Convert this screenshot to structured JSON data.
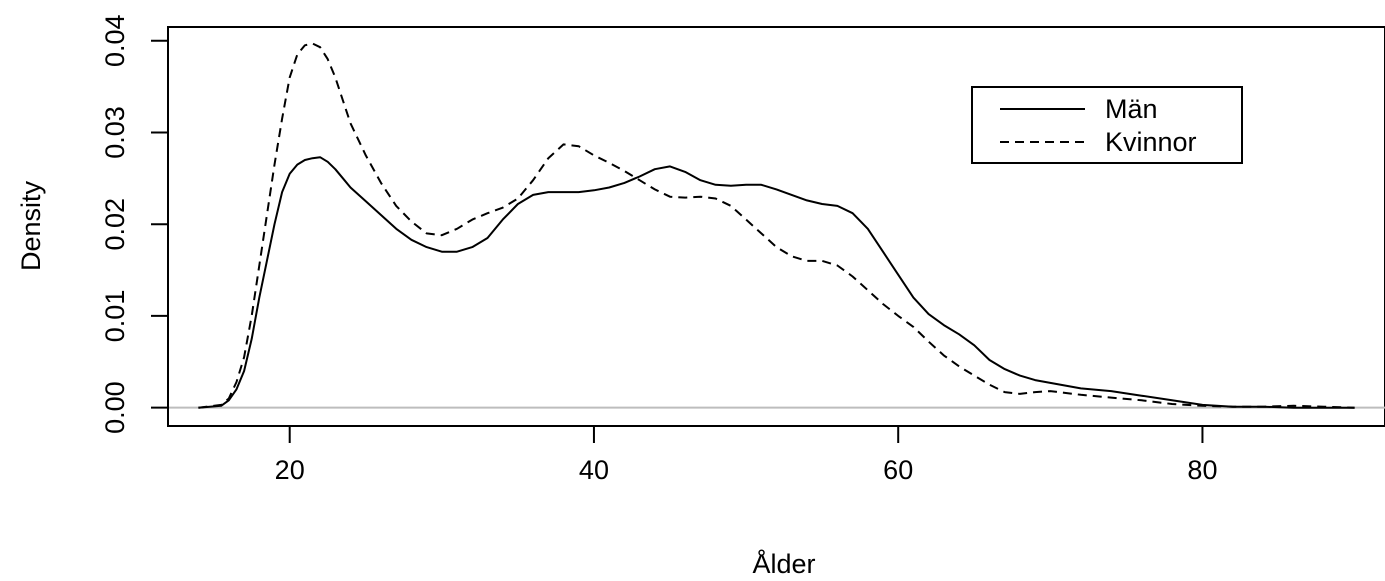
{
  "chart_data": {
    "type": "line",
    "title": "",
    "xlabel": "Ålder",
    "ylabel": "Density",
    "xlim": [
      12,
      92
    ],
    "ylim": [
      -0.002,
      0.0415
    ],
    "xticks": [
      20,
      40,
      60,
      80
    ],
    "xtick_labels": [
      "20",
      "40",
      "60",
      "80"
    ],
    "yticks": [
      0.0,
      0.01,
      0.02,
      0.03,
      0.04
    ],
    "ytick_labels": [
      "0.00",
      "0.01",
      "0.02",
      "0.03",
      "0.04"
    ],
    "grid": false,
    "baseline": 0,
    "legend": {
      "position": "top-right"
    },
    "series": [
      {
        "name": "Män",
        "line_style": "solid",
        "color": "#000000",
        "x": [
          14,
          15.5,
          16,
          16.5,
          17,
          17.5,
          18,
          18.5,
          19,
          19.5,
          20,
          20.5,
          21,
          21.5,
          22,
          22.5,
          23,
          23.5,
          24,
          25,
          26,
          27,
          28,
          29,
          30,
          31,
          32,
          33,
          34,
          35,
          36,
          37,
          38,
          39,
          40,
          41,
          42,
          43,
          44,
          45,
          46,
          47,
          48,
          49,
          50,
          51,
          52,
          53,
          54,
          55,
          56,
          57,
          58,
          59,
          60,
          61,
          62,
          63,
          64,
          65,
          66,
          67,
          68,
          69,
          70,
          72,
          74,
          76,
          78,
          80,
          82,
          84,
          86,
          88,
          90
        ],
        "values": [
          0.0,
          0.0002,
          0.0008,
          0.002,
          0.004,
          0.0075,
          0.012,
          0.016,
          0.02,
          0.0235,
          0.0255,
          0.0265,
          0.027,
          0.0272,
          0.0273,
          0.0268,
          0.026,
          0.025,
          0.024,
          0.0225,
          0.021,
          0.0195,
          0.0183,
          0.0175,
          0.017,
          0.017,
          0.0175,
          0.0185,
          0.0205,
          0.0222,
          0.0232,
          0.0235,
          0.0235,
          0.0235,
          0.0237,
          0.024,
          0.0245,
          0.0252,
          0.026,
          0.0263,
          0.0257,
          0.0248,
          0.0243,
          0.0242,
          0.0243,
          0.0243,
          0.0238,
          0.0232,
          0.0226,
          0.0222,
          0.022,
          0.0212,
          0.0195,
          0.017,
          0.0145,
          0.012,
          0.0102,
          0.009,
          0.008,
          0.0068,
          0.0052,
          0.0042,
          0.0035,
          0.003,
          0.0027,
          0.0021,
          0.0018,
          0.0013,
          0.0008,
          0.0003,
          0.0001,
          0.0001,
          0.0,
          0.0,
          0.0
        ]
      },
      {
        "name": "Kvinnor",
        "line_style": "dashed",
        "color": "#000000",
        "x": [
          14,
          15.5,
          16,
          16.5,
          17,
          17.5,
          18,
          18.5,
          19,
          19.5,
          20,
          20.5,
          21,
          21.5,
          22,
          22.5,
          23,
          23.5,
          24,
          25,
          26,
          27,
          28,
          29,
          30,
          31,
          32,
          33,
          34,
          35,
          36,
          37,
          38,
          39,
          40,
          41,
          42,
          43,
          44,
          45,
          46,
          47,
          48,
          49,
          50,
          51,
          52,
          53,
          54,
          55,
          56,
          57,
          58,
          59,
          60,
          61,
          62,
          63,
          64,
          65,
          66,
          67,
          68,
          69,
          70,
          72,
          74,
          76,
          78,
          80,
          82,
          84,
          86,
          88,
          90
        ],
        "values": [
          0.0,
          0.0003,
          0.001,
          0.0028,
          0.0055,
          0.01,
          0.0155,
          0.021,
          0.0265,
          0.0315,
          0.036,
          0.0385,
          0.0395,
          0.0397,
          0.0393,
          0.038,
          0.036,
          0.0335,
          0.031,
          0.0275,
          0.0245,
          0.022,
          0.0203,
          0.019,
          0.0188,
          0.0195,
          0.0205,
          0.0212,
          0.0218,
          0.0228,
          0.0248,
          0.0272,
          0.0287,
          0.0285,
          0.0275,
          0.0267,
          0.0258,
          0.0248,
          0.0238,
          0.023,
          0.0229,
          0.023,
          0.0228,
          0.022,
          0.0205,
          0.019,
          0.0175,
          0.0165,
          0.016,
          0.016,
          0.0155,
          0.0143,
          0.0128,
          0.0113,
          0.01,
          0.0088,
          0.0072,
          0.0057,
          0.0045,
          0.0035,
          0.0025,
          0.0017,
          0.0015,
          0.0017,
          0.0018,
          0.0014,
          0.0011,
          0.0008,
          0.0004,
          0.0002,
          0.0001,
          0.0001,
          0.0002,
          0.0001,
          0.0
        ]
      }
    ]
  }
}
